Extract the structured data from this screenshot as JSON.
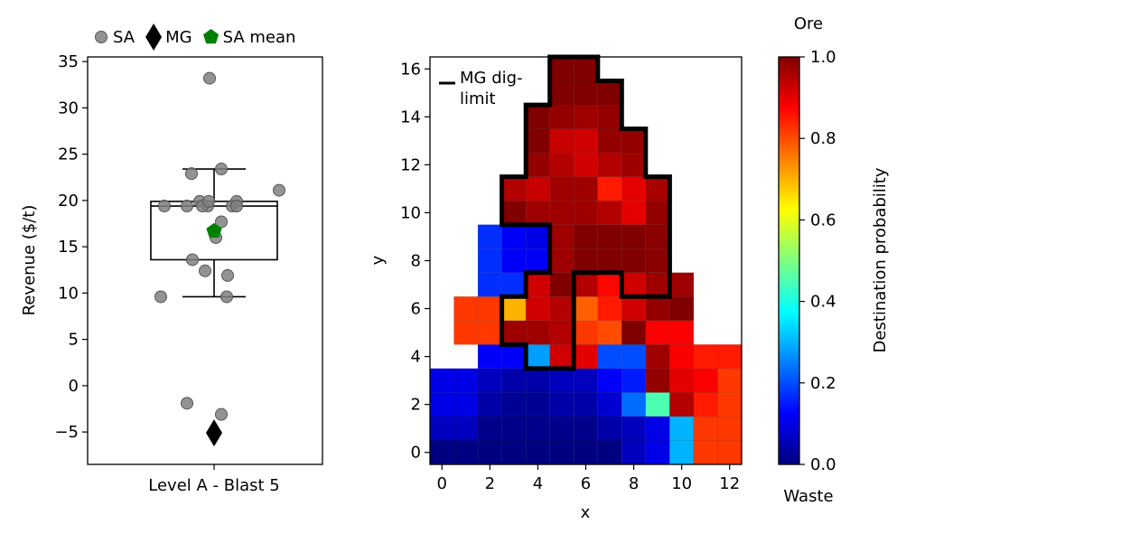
{
  "chart_data": [
    {
      "type": "box",
      "ylabel": "Revenue ($/t)",
      "category": "Level A - Blast 5",
      "ylim": [
        -8.5,
        35.5
      ],
      "yticks": [
        -5,
        0,
        5,
        10,
        15,
        20,
        25,
        30,
        35
      ],
      "box": {
        "whisker_low": 9.6,
        "q1": 13.6,
        "median": 19.4,
        "q3": 19.9,
        "whisker_high": 23.4
      },
      "legend": {
        "placement": "top",
        "entries": [
          "SA",
          "MG",
          "SA mean"
        ]
      },
      "series": [
        {
          "name": "SA",
          "marker": "circle",
          "color": "#808080",
          "points": [
            {
              "x": -0.05,
              "y": 33.2
            },
            {
              "x": -0.25,
              "y": 22.9
            },
            {
              "x": 0.08,
              "y": 23.4
            },
            {
              "x": 0.72,
              "y": 21.1
            },
            {
              "x": -0.55,
              "y": 19.4
            },
            {
              "x": -0.3,
              "y": 19.4
            },
            {
              "x": -0.16,
              "y": 19.9
            },
            {
              "x": -0.07,
              "y": 19.4
            },
            {
              "x": 0.2,
              "y": 19.4
            },
            {
              "x": 0.25,
              "y": 19.9
            },
            {
              "x": 0.25,
              "y": 19.4
            },
            {
              "x": -0.13,
              "y": 19.4
            },
            {
              "x": -0.06,
              "y": 19.9
            },
            {
              "x": 0.08,
              "y": 17.7
            },
            {
              "x": 0.02,
              "y": 16.0
            },
            {
              "x": -0.24,
              "y": 13.6
            },
            {
              "x": -0.1,
              "y": 12.4
            },
            {
              "x": 0.15,
              "y": 11.9
            },
            {
              "x": -0.59,
              "y": 9.6
            },
            {
              "x": 0.14,
              "y": 9.6
            },
            {
              "x": -0.3,
              "y": -1.9
            },
            {
              "x": 0.08,
              "y": -3.1
            }
          ]
        },
        {
          "name": "MG",
          "marker": "diamond",
          "color": "#000000",
          "points": [
            {
              "x": 0.0,
              "y": -5.1
            }
          ]
        },
        {
          "name": "SA mean",
          "marker": "pentagon",
          "color": "#008000",
          "points": [
            {
              "x": 0.0,
              "y": 16.7
            }
          ]
        }
      ]
    },
    {
      "type": "heatmap",
      "xlabel": "x",
      "ylabel": "y",
      "xlim": [
        -0.5,
        12.5
      ],
      "ylim": [
        -0.5,
        16.5
      ],
      "xticks": [
        0,
        2,
        4,
        6,
        8,
        10,
        12
      ],
      "yticks": [
        0,
        2,
        4,
        6,
        8,
        10,
        12,
        14,
        16
      ],
      "colormap": "jet",
      "grid_origin": {
        "x": 0,
        "y": 0
      },
      "rows_from_bottom": [
        [
          0.0,
          0.0,
          0.0,
          0.0,
          0.0,
          0.0,
          0.0,
          0.0,
          0.06,
          0.1,
          0.3,
          0.82,
          0.82
        ],
        [
          0.06,
          0.06,
          0.01,
          0.01,
          0.01,
          0.01,
          0.01,
          0.04,
          0.06,
          0.1,
          0.3,
          0.82,
          0.82
        ],
        [
          0.1,
          0.1,
          0.04,
          0.02,
          0.02,
          0.04,
          0.04,
          0.08,
          0.23,
          0.45,
          0.95,
          0.85,
          0.82
        ],
        [
          0.1,
          0.1,
          0.06,
          0.04,
          0.04,
          0.06,
          0.06,
          0.12,
          0.15,
          0.98,
          0.9,
          0.88,
          0.82
        ],
        [
          null,
          null,
          0.12,
          0.12,
          0.28,
          0.92,
          0.9,
          0.2,
          0.2,
          0.97,
          0.88,
          0.85,
          0.85
        ],
        [
          null,
          0.82,
          0.82,
          0.97,
          0.97,
          0.95,
          0.82,
          0.8,
          1.0,
          0.88,
          0.88,
          null,
          null
        ],
        [
          null,
          0.82,
          0.82,
          0.7,
          0.92,
          0.95,
          0.78,
          0.85,
          0.92,
          0.98,
          1.0,
          null,
          null
        ],
        [
          null,
          null,
          0.17,
          0.17,
          0.92,
          1.0,
          0.95,
          0.87,
          0.92,
          0.97,
          0.97,
          null,
          null
        ],
        [
          null,
          null,
          0.17,
          0.12,
          0.12,
          0.97,
          1.0,
          1.0,
          1.0,
          0.99,
          null,
          null,
          null
        ],
        [
          null,
          null,
          0.17,
          0.12,
          0.1,
          0.97,
          1.0,
          1.0,
          1.0,
          0.99,
          null,
          null,
          null
        ],
        [
          null,
          null,
          null,
          1.0,
          0.97,
          0.97,
          0.97,
          0.95,
          0.9,
          0.98,
          null,
          null,
          null
        ],
        [
          null,
          null,
          null,
          0.95,
          0.93,
          0.97,
          0.97,
          0.85,
          0.9,
          0.96,
          null,
          null,
          null
        ],
        [
          null,
          null,
          null,
          null,
          0.98,
          0.95,
          0.92,
          0.95,
          0.97,
          null,
          null,
          null,
          null
        ],
        [
          null,
          null,
          null,
          null,
          1.0,
          0.93,
          0.92,
          0.98,
          0.98,
          null,
          null,
          null,
          null
        ],
        [
          null,
          null,
          null,
          null,
          1.0,
          0.98,
          0.97,
          0.98,
          null,
          null,
          null,
          null,
          null
        ],
        [
          null,
          null,
          null,
          null,
          null,
          1.0,
          1.0,
          1.0,
          null,
          null,
          null,
          null,
          null
        ],
        [
          null,
          null,
          null,
          null,
          null,
          1.0,
          1.0,
          null,
          null,
          null,
          null,
          null,
          null
        ]
      ],
      "diglimit": {
        "name": "MG dig-limit",
        "legend_lines": [
          "MG dig-",
          "limit"
        ],
        "polygon": [
          [
            3.5,
            3.5
          ],
          [
            5.5,
            3.5
          ],
          [
            5.5,
            7.5
          ],
          [
            7.5,
            7.5
          ],
          [
            7.5,
            6.5
          ],
          [
            9.5,
            6.5
          ],
          [
            9.5,
            11.5
          ],
          [
            8.5,
            11.5
          ],
          [
            8.5,
            13.5
          ],
          [
            7.5,
            13.5
          ],
          [
            7.5,
            15.5
          ],
          [
            6.5,
            15.5
          ],
          [
            6.5,
            16.5
          ],
          [
            4.5,
            16.5
          ],
          [
            4.5,
            14.5
          ],
          [
            3.5,
            14.5
          ],
          [
            3.5,
            11.5
          ],
          [
            2.5,
            11.5
          ],
          [
            2.5,
            9.5
          ],
          [
            4.5,
            9.5
          ],
          [
            4.5,
            7.5
          ],
          [
            3.5,
            7.5
          ],
          [
            3.5,
            6.5
          ],
          [
            2.5,
            6.5
          ],
          [
            2.5,
            4.5
          ],
          [
            3.5,
            4.5
          ]
        ]
      }
    },
    {
      "type": "colorbar",
      "label": "Destination probability",
      "top_label": "Ore",
      "bottom_label": "Waste",
      "range": [
        0.0,
        1.0
      ],
      "ticks": [
        "0.0",
        "0.2",
        "0.4",
        "0.6",
        "0.8",
        "1.0"
      ]
    }
  ]
}
